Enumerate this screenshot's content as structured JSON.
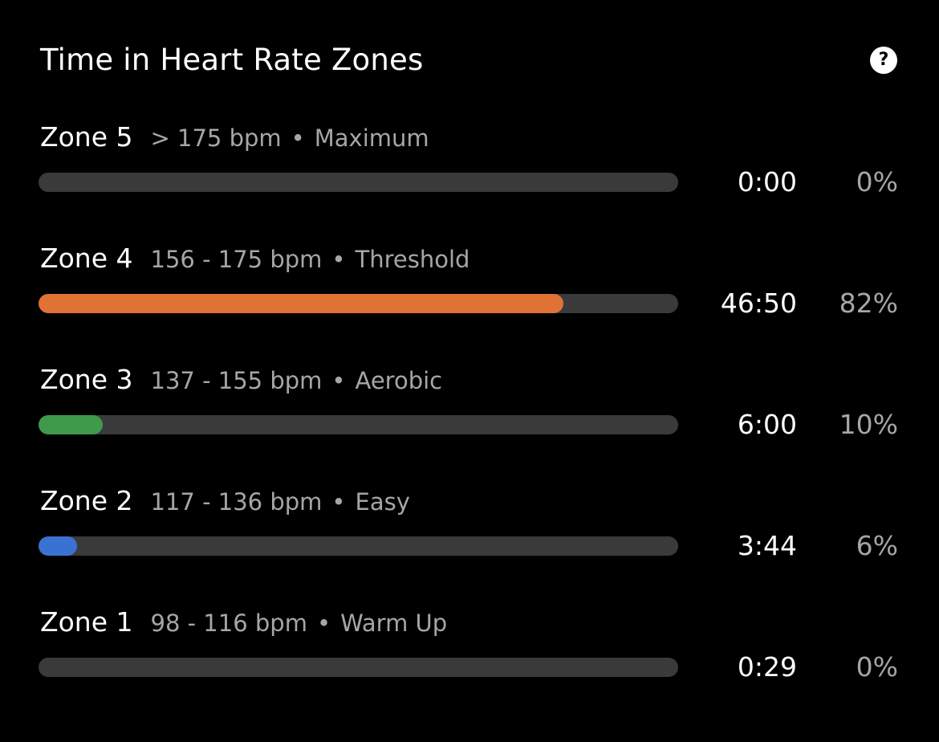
{
  "header": {
    "title": "Time in Heart Rate Zones",
    "help_icon": "question-circle-icon",
    "help_glyph": "?"
  },
  "separator": "•",
  "zones": [
    {
      "name": "Zone 5",
      "range": "> 175 bpm",
      "label": "Maximum",
      "time": "0:00",
      "percent": "0%",
      "fraction": 0.0,
      "color": "#3a3a3a"
    },
    {
      "name": "Zone 4",
      "range": "156 - 175 bpm",
      "label": "Threshold",
      "time": "46:50",
      "percent": "82%",
      "fraction": 0.82,
      "color": "#e07236"
    },
    {
      "name": "Zone 3",
      "range": "137 - 155 bpm",
      "label": "Aerobic",
      "time": "6:00",
      "percent": "10%",
      "fraction": 0.1,
      "color": "#3f9a4c"
    },
    {
      "name": "Zone 2",
      "range": "117 - 136 bpm",
      "label": "Easy",
      "time": "3:44",
      "percent": "6%",
      "fraction": 0.06,
      "color": "#3a72d1"
    },
    {
      "name": "Zone 1",
      "range": "98 - 116 bpm",
      "label": "Warm Up",
      "time": "0:29",
      "percent": "0%",
      "fraction": 0.0,
      "color": "#3a3a3a"
    }
  ]
}
